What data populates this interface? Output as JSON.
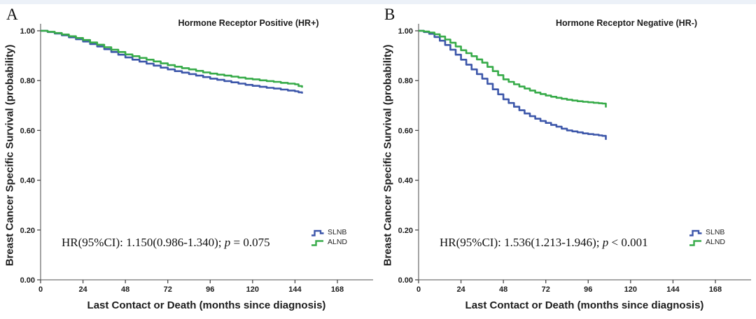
{
  "colors": {
    "slnb_blue": "#3d57aa",
    "alnd_green": "#37ab49",
    "top_strip": "#ecf1f8",
    "axis": "#737373",
    "text": "#1c1c1c"
  },
  "panels": [
    {
      "letter": "A"
    },
    {
      "letter": "B"
    }
  ],
  "chart_data": [
    {
      "type": "line",
      "step": true,
      "title": "Hormone Receptor Positive (HR+)",
      "xlabel": "Last Contact or Death (months since diagnosis)",
      "ylabel": "Breast Cancer Specific Survival (probability)",
      "xlim": [
        0,
        189
      ],
      "ylim": [
        0,
        1.0
      ],
      "xticks": [
        0,
        24,
        48,
        72,
        96,
        120,
        144,
        168
      ],
      "yticks": [
        "0.00",
        "0.20",
        "0.40",
        "0.60",
        "0.80",
        "1.00"
      ],
      "legend_position": "lower right",
      "annotation": {
        "full": "HR(95%CI): 1.150(0.986-1.340); p = 0.075",
        "prefix": "HR(95%CI): 1.150(0.986-1.340); ",
        "p": "p",
        "suffix": " = 0.075"
      },
      "x": [
        0,
        4,
        8,
        12,
        16,
        20,
        24,
        28,
        32,
        36,
        40,
        44,
        48,
        52,
        56,
        60,
        64,
        68,
        72,
        76,
        80,
        84,
        88,
        92,
        96,
        100,
        104,
        108,
        112,
        116,
        120,
        124,
        128,
        132,
        136,
        140,
        144,
        146,
        148
      ],
      "series": [
        {
          "name": "SLNB",
          "color": "#3d57aa",
          "values": [
            1.0,
            0.995,
            0.989,
            0.982,
            0.974,
            0.966,
            0.957,
            0.947,
            0.937,
            0.926,
            0.915,
            0.904,
            0.893,
            0.884,
            0.876,
            0.868,
            0.86,
            0.852,
            0.845,
            0.838,
            0.832,
            0.826,
            0.82,
            0.814,
            0.808,
            0.803,
            0.798,
            0.793,
            0.788,
            0.783,
            0.779,
            0.775,
            0.771,
            0.768,
            0.764,
            0.76,
            0.757,
            0.753,
            0.748
          ]
        },
        {
          "name": "ALND",
          "color": "#37ab49",
          "values": [
            1.0,
            0.996,
            0.991,
            0.985,
            0.978,
            0.971,
            0.963,
            0.953,
            0.944,
            0.934,
            0.924,
            0.915,
            0.905,
            0.898,
            0.891,
            0.884,
            0.877,
            0.869,
            0.862,
            0.856,
            0.85,
            0.845,
            0.839,
            0.833,
            0.828,
            0.824,
            0.82,
            0.816,
            0.812,
            0.808,
            0.805,
            0.801,
            0.798,
            0.795,
            0.791,
            0.788,
            0.785,
            0.778,
            0.772
          ]
        }
      ]
    },
    {
      "type": "line",
      "step": true,
      "title": "Hormone Receptor Negative (HR-)",
      "xlabel": "Last Contact or Death (months since diagnosis)",
      "ylabel": "Breast Cancer Specific Survival (probability)",
      "xlim": [
        0,
        189
      ],
      "ylim": [
        0,
        1.0
      ],
      "xticks": [
        0,
        24,
        48,
        72,
        96,
        120,
        144,
        168
      ],
      "yticks": [
        "0.00",
        "0.20",
        "0.40",
        "0.60",
        "0.80",
        "1.00"
      ],
      "legend_position": "lower right",
      "annotation": {
        "full": "HR(95%CI): 1.536(1.213-1.946); p < 0.001",
        "prefix": "HR(95%CI): 1.536(1.213-1.946); ",
        "p": "p",
        "suffix": " < 0.001"
      },
      "x": [
        0,
        3,
        6,
        9,
        12,
        15,
        18,
        21,
        24,
        27,
        30,
        33,
        36,
        39,
        42,
        45,
        48,
        51,
        54,
        57,
        60,
        63,
        66,
        69,
        72,
        75,
        78,
        81,
        84,
        87,
        90,
        93,
        96,
        99,
        102,
        104,
        106
      ],
      "series": [
        {
          "name": "SLNB",
          "color": "#3d57aa",
          "values": [
            1.0,
            0.995,
            0.988,
            0.975,
            0.96,
            0.943,
            0.924,
            0.904,
            0.884,
            0.864,
            0.845,
            0.826,
            0.808,
            0.787,
            0.765,
            0.745,
            0.725,
            0.71,
            0.695,
            0.681,
            0.668,
            0.657,
            0.647,
            0.638,
            0.63,
            0.622,
            0.615,
            0.607,
            0.6,
            0.596,
            0.592,
            0.588,
            0.585,
            0.583,
            0.58,
            0.578,
            0.562
          ]
        },
        {
          "name": "ALND",
          "color": "#37ab49",
          "values": [
            1.0,
            0.997,
            0.993,
            0.986,
            0.977,
            0.965,
            0.952,
            0.937,
            0.922,
            0.91,
            0.898,
            0.885,
            0.872,
            0.855,
            0.838,
            0.822,
            0.805,
            0.795,
            0.785,
            0.776,
            0.768,
            0.76,
            0.752,
            0.746,
            0.74,
            0.735,
            0.731,
            0.727,
            0.723,
            0.72,
            0.717,
            0.715,
            0.713,
            0.711,
            0.709,
            0.708,
            0.692
          ]
        }
      ]
    }
  ]
}
